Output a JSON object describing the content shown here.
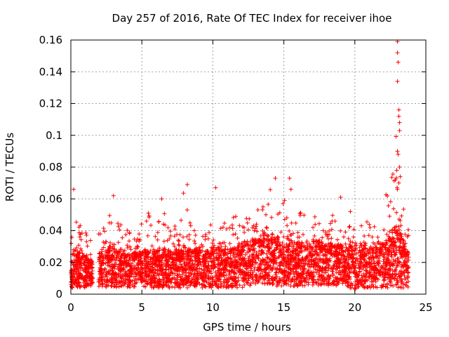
{
  "chart_data": {
    "type": "scatter",
    "title": "Day 257 of 2016, Rate Of TEC Index for receiver ihoe",
    "xlabel": "GPS time / hours",
    "ylabel": "ROTI / TECUs",
    "xlim": [
      0,
      25
    ],
    "ylim": [
      0,
      0.16
    ],
    "xticks": [
      0,
      5,
      10,
      15,
      20,
      25
    ],
    "xtick_labels": [
      "0",
      "5",
      "10",
      "15",
      "20",
      "25"
    ],
    "yticks": [
      0,
      0.02,
      0.04,
      0.06,
      0.08,
      0.1,
      0.12,
      0.14,
      0.16
    ],
    "ytick_labels": [
      "0",
      "0.02",
      "0.04",
      "0.06",
      "0.08",
      "0.1",
      "0.12",
      "0.14",
      "0.16"
    ],
    "grid": true,
    "marker": "+",
    "color": "#ff0000",
    "series": [
      {
        "name": "ROTI",
        "envelope_note": "dense band per half-hour bin: [hour, min, typical_high, max]",
        "envelope": [
          [
            0.0,
            0.004,
            0.028,
            0.066
          ],
          [
            0.5,
            0.004,
            0.026,
            0.045
          ],
          [
            1.0,
            0.004,
            0.024,
            0.04
          ],
          [
            1.4,
            0.005,
            0.02,
            0.035
          ],
          [
            2.0,
            0.004,
            0.026,
            0.04
          ],
          [
            2.5,
            0.004,
            0.028,
            0.045
          ],
          [
            3.0,
            0.004,
            0.03,
            0.062
          ],
          [
            3.5,
            0.004,
            0.026,
            0.045
          ],
          [
            4.0,
            0.004,
            0.025,
            0.042
          ],
          [
            4.5,
            0.004,
            0.026,
            0.044
          ],
          [
            5.0,
            0.004,
            0.027,
            0.046
          ],
          [
            5.5,
            0.004,
            0.028,
            0.056
          ],
          [
            6.0,
            0.004,
            0.027,
            0.048
          ],
          [
            6.5,
            0.004,
            0.028,
            0.06
          ],
          [
            7.0,
            0.004,
            0.027,
            0.046
          ],
          [
            7.5,
            0.004,
            0.028,
            0.05
          ],
          [
            8.0,
            0.004,
            0.029,
            0.069
          ],
          [
            8.5,
            0.004,
            0.027,
            0.048
          ],
          [
            9.0,
            0.004,
            0.028,
            0.046
          ],
          [
            9.5,
            0.004,
            0.027,
            0.048
          ],
          [
            10.0,
            0.004,
            0.03,
            0.067
          ],
          [
            10.5,
            0.004,
            0.029,
            0.05
          ],
          [
            11.0,
            0.004,
            0.028,
            0.048
          ],
          [
            11.5,
            0.004,
            0.029,
            0.05
          ],
          [
            12.0,
            0.004,
            0.03,
            0.05
          ],
          [
            12.5,
            0.005,
            0.032,
            0.052
          ],
          [
            13.0,
            0.006,
            0.034,
            0.054
          ],
          [
            13.5,
            0.006,
            0.035,
            0.056
          ],
          [
            14.0,
            0.006,
            0.036,
            0.073
          ],
          [
            14.5,
            0.005,
            0.034,
            0.058
          ],
          [
            15.0,
            0.005,
            0.034,
            0.073
          ],
          [
            15.5,
            0.005,
            0.033,
            0.056
          ],
          [
            16.0,
            0.005,
            0.033,
            0.054
          ],
          [
            16.5,
            0.005,
            0.032,
            0.052
          ],
          [
            17.0,
            0.005,
            0.033,
            0.055
          ],
          [
            17.5,
            0.005,
            0.034,
            0.058
          ],
          [
            18.0,
            0.005,
            0.032,
            0.056
          ],
          [
            18.5,
            0.005,
            0.031,
            0.052
          ],
          [
            19.0,
            0.005,
            0.031,
            0.061
          ],
          [
            19.5,
            0.004,
            0.03,
            0.05
          ],
          [
            20.0,
            0.003,
            0.03,
            0.056
          ],
          [
            20.5,
            0.004,
            0.029,
            0.048
          ],
          [
            21.0,
            0.004,
            0.029,
            0.046
          ],
          [
            21.5,
            0.004,
            0.03,
            0.054
          ],
          [
            22.0,
            0.004,
            0.032,
            0.06
          ],
          [
            22.5,
            0.004,
            0.036,
            0.07
          ],
          [
            23.0,
            0.004,
            0.045,
            0.159
          ],
          [
            23.5,
            0.004,
            0.032,
            0.05
          ],
          [
            23.8,
            0.004,
            0.025,
            0.042
          ]
        ],
        "peaks": [
          [
            23.0,
            0.159
          ],
          [
            23.0,
            0.152
          ],
          [
            23.05,
            0.146
          ],
          [
            23.0,
            0.134
          ],
          [
            23.1,
            0.116
          ],
          [
            23.1,
            0.112
          ],
          [
            23.15,
            0.108
          ],
          [
            23.15,
            0.103
          ],
          [
            23.0,
            0.09
          ],
          [
            23.05,
            0.088
          ],
          [
            23.15,
            0.08
          ],
          [
            22.95,
            0.078
          ],
          [
            23.2,
            0.074
          ],
          [
            23.1,
            0.07
          ],
          [
            22.85,
            0.072
          ],
          [
            23.0,
            0.066
          ],
          [
            8.2,
            0.069
          ],
          [
            10.2,
            0.067
          ],
          [
            0.2,
            0.066
          ],
          [
            14.4,
            0.073
          ],
          [
            15.4,
            0.073
          ],
          [
            15.5,
            0.066
          ],
          [
            6.4,
            0.06
          ],
          [
            3.0,
            0.062
          ],
          [
            19.0,
            0.061
          ]
        ]
      }
    ]
  }
}
